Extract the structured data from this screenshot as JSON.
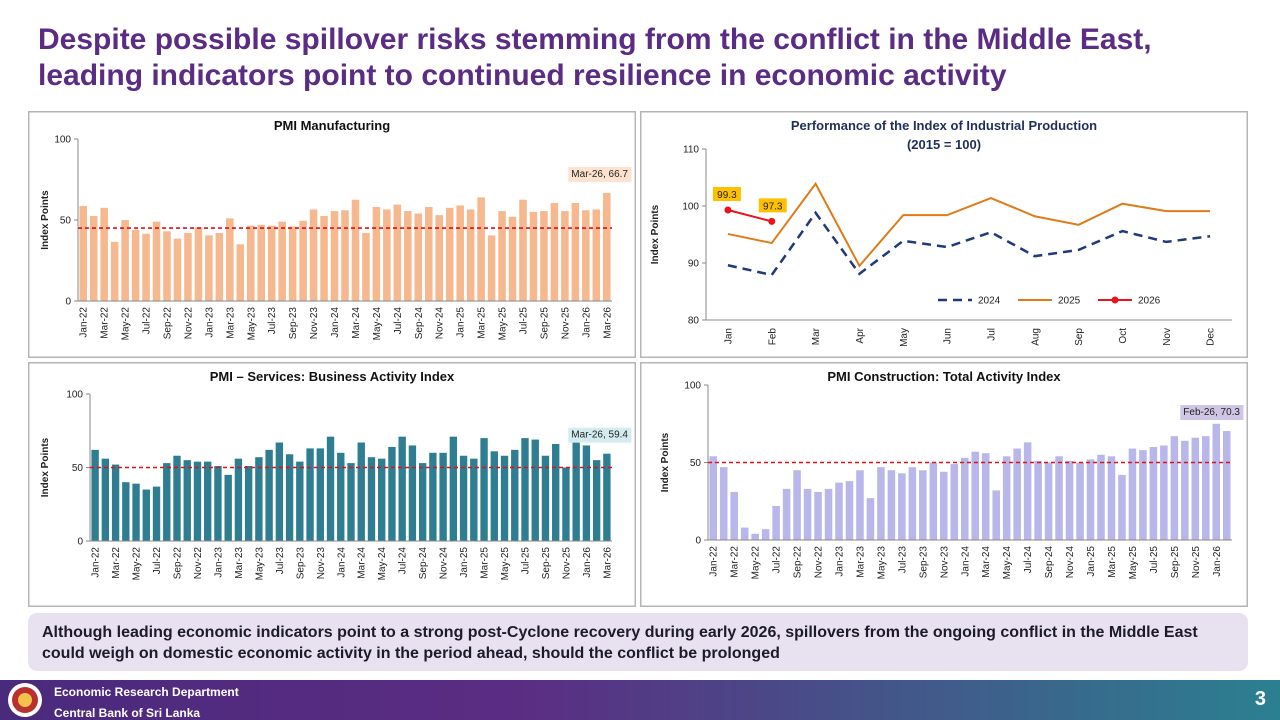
{
  "title": "Despite possible spillover risks stemming from the conflict in the Middle East, leading indicators point to continued resilience in economic activity",
  "chart_data": [
    {
      "type": "bar",
      "title": "PMI Manufacturing",
      "y_label": "Index Points",
      "categories": [
        "Jan-22",
        null,
        "Mar-22",
        null,
        "May-22",
        null,
        "Jul-22",
        null,
        "Sep-22",
        null,
        "Nov-22",
        null,
        "Jan-23",
        null,
        "Mar-23",
        null,
        "May-23",
        null,
        "Jul-23",
        null,
        "Sep-23",
        null,
        "Nov-23",
        null,
        "Jan-24",
        null,
        "Mar-24",
        null,
        "May-24",
        null,
        "Jul-24",
        null,
        "Sep-24",
        null,
        "Nov-24",
        null,
        "Jan-25",
        null,
        "Mar-25",
        null,
        "May-25",
        null,
        "Jul-25",
        null,
        "Sep-25",
        null,
        "Nov-25",
        null,
        "Jan-26",
        null,
        "Mar-26"
      ],
      "values": [
        58.6,
        52.5,
        57.5,
        36.5,
        50,
        44,
        41.5,
        49,
        43,
        38.5,
        42,
        45.5,
        40.5,
        42,
        51,
        35,
        46.5,
        47,
        46.5,
        49,
        46,
        49.5,
        56.5,
        52.5,
        55.5,
        56,
        62.5,
        42,
        58,
        56.5,
        59.5,
        55.5,
        54,
        58,
        53,
        57.5,
        59,
        56.5,
        64,
        40.5,
        55.5,
        52,
        62.5,
        55,
        55.5,
        60.5,
        55.5,
        60.5,
        56,
        56.5,
        66.7
      ],
      "color": "#f6b88f",
      "ylim": [
        0,
        100
      ],
      "yticks": [
        0,
        50,
        100
      ],
      "reference_line": 45,
      "reference_color": "#d9141b",
      "annotation": "Mar-26, 66.7",
      "annotation_color": "#fde3cf"
    },
    {
      "type": "line",
      "title": "Performance of the Index of Industrial Production",
      "subtitle": "(2015 = 100)",
      "y_label": "Index Points",
      "categories": [
        "Jan",
        "Feb",
        "Mar",
        "Apr",
        "May",
        "Jun",
        "Jul",
        "Aug",
        "Sep",
        "Oct",
        "Nov",
        "Dec"
      ],
      "series": [
        {
          "name": "2024",
          "color": "#1f3a7a",
          "dashed": true,
          "values": [
            89.6,
            87.9,
            98.8,
            88.1,
            93.9,
            92.8,
            95.4,
            91.2,
            92.3,
            95.6,
            93.7,
            94.7
          ]
        },
        {
          "name": "2025",
          "color": "#e07b19",
          "dashed": false,
          "values": [
            95.1,
            93.5,
            103.9,
            89.5,
            98.4,
            98.4,
            101.4,
            98.2,
            96.7,
            100.4,
            99.1,
            99.1
          ]
        },
        {
          "name": "2026",
          "color": "#e8141b",
          "dashed": false,
          "markers": true,
          "values": [
            99.3,
            97.3,
            null,
            null,
            null,
            null,
            null,
            null,
            null,
            null,
            null,
            null
          ]
        }
      ],
      "label_color": "#ffc000",
      "ylim": [
        80,
        110
      ],
      "yticks": [
        80,
        90,
        100,
        110
      ],
      "legend": "bottom"
    },
    {
      "type": "bar",
      "title": "PMI – Services: Business Activity Index",
      "y_label": "Index Points",
      "categories": [
        "Jan-22",
        null,
        "Mar-22",
        null,
        "May-22",
        null,
        "Jul-22",
        null,
        "Sep-22",
        null,
        "Nov-22",
        null,
        "Jan-23",
        null,
        "Mar-23",
        null,
        "May-23",
        null,
        "Jul-23",
        null,
        "Sep-23",
        null,
        "Nov-23",
        null,
        "Jan-24",
        null,
        "Mar-24",
        null,
        "May-24",
        null,
        "Jul-24",
        null,
        "Sep-24",
        null,
        "Nov-24",
        null,
        "Jan-25",
        null,
        "Mar-25",
        null,
        "May-25",
        null,
        "Jul-25",
        null,
        "Sep-25",
        null,
        "Nov-25",
        null,
        "Jan-26",
        null,
        "Mar-26"
      ],
      "values": [
        62,
        56,
        52,
        40,
        39,
        35,
        37,
        53,
        58,
        55,
        54,
        54,
        51,
        45,
        56,
        51,
        57,
        62,
        67,
        59,
        54,
        63,
        63,
        71,
        60,
        53,
        67,
        57,
        56,
        64,
        71,
        65,
        53,
        60,
        60,
        71,
        58,
        56,
        70,
        61,
        58,
        62,
        70,
        69,
        58,
        66,
        50,
        68,
        65,
        55,
        59.4
      ],
      "color": "#2e7d91",
      "ylim": [
        0,
        100
      ],
      "yticks": [
        0,
        50,
        100
      ],
      "reference_line": 50,
      "reference_color": "#d9141b",
      "annotation": "Mar-26, 59.4",
      "annotation_color": "#d4ebf0"
    },
    {
      "type": "bar",
      "title": "PMI Construction: Total Activity Index",
      "y_label": "Index Points",
      "categories": [
        "Jan-22",
        null,
        "Mar-22",
        null,
        "May-22",
        null,
        "Jul-22",
        null,
        "Sep-22",
        null,
        "Nov-22",
        null,
        "Jan-23",
        null,
        "Mar-23",
        null,
        "May-23",
        null,
        "Jul-23",
        null,
        "Sep-23",
        null,
        "Nov-23",
        null,
        "Jan-24",
        null,
        "Mar-24",
        null,
        "May-24",
        null,
        "Jul-24",
        null,
        "Sep-24",
        null,
        "Nov-24",
        null,
        "Jan-25",
        null,
        "Mar-25",
        null,
        "May-25",
        null,
        "Jul-25",
        null,
        "Sep-25",
        null,
        "Nov-25",
        null,
        "Jan-26",
        null
      ],
      "values": [
        54,
        47,
        31,
        8,
        4,
        7,
        22,
        33,
        45,
        33,
        31,
        33,
        37,
        38,
        45,
        27,
        47,
        45,
        43,
        47,
        45,
        50,
        44,
        49,
        53,
        57,
        56,
        32,
        54,
        59,
        63,
        51,
        50,
        54,
        51,
        50,
        52,
        55,
        54,
        42,
        59,
        58,
        60,
        61,
        67,
        64,
        66,
        67,
        75,
        70.3
      ],
      "color": "#b9b7ea",
      "ylim": [
        0,
        100
      ],
      "yticks": [
        0,
        50,
        100
      ],
      "reference_line": 50,
      "reference_color": "#d9141b",
      "annotation": "Feb-26, 70.3",
      "annotation_color": "#cfc6e6"
    }
  ],
  "summary": "Although leading economic indicators point to a strong post-Cyclone recovery during early 2026, spillovers from the ongoing conflict in the Middle East could weigh on domestic economic activity in the period ahead, should the conflict be prolonged",
  "footer": {
    "department": "Economic Research Department",
    "bank": "Central Bank of Sri Lanka",
    "page": 3
  }
}
